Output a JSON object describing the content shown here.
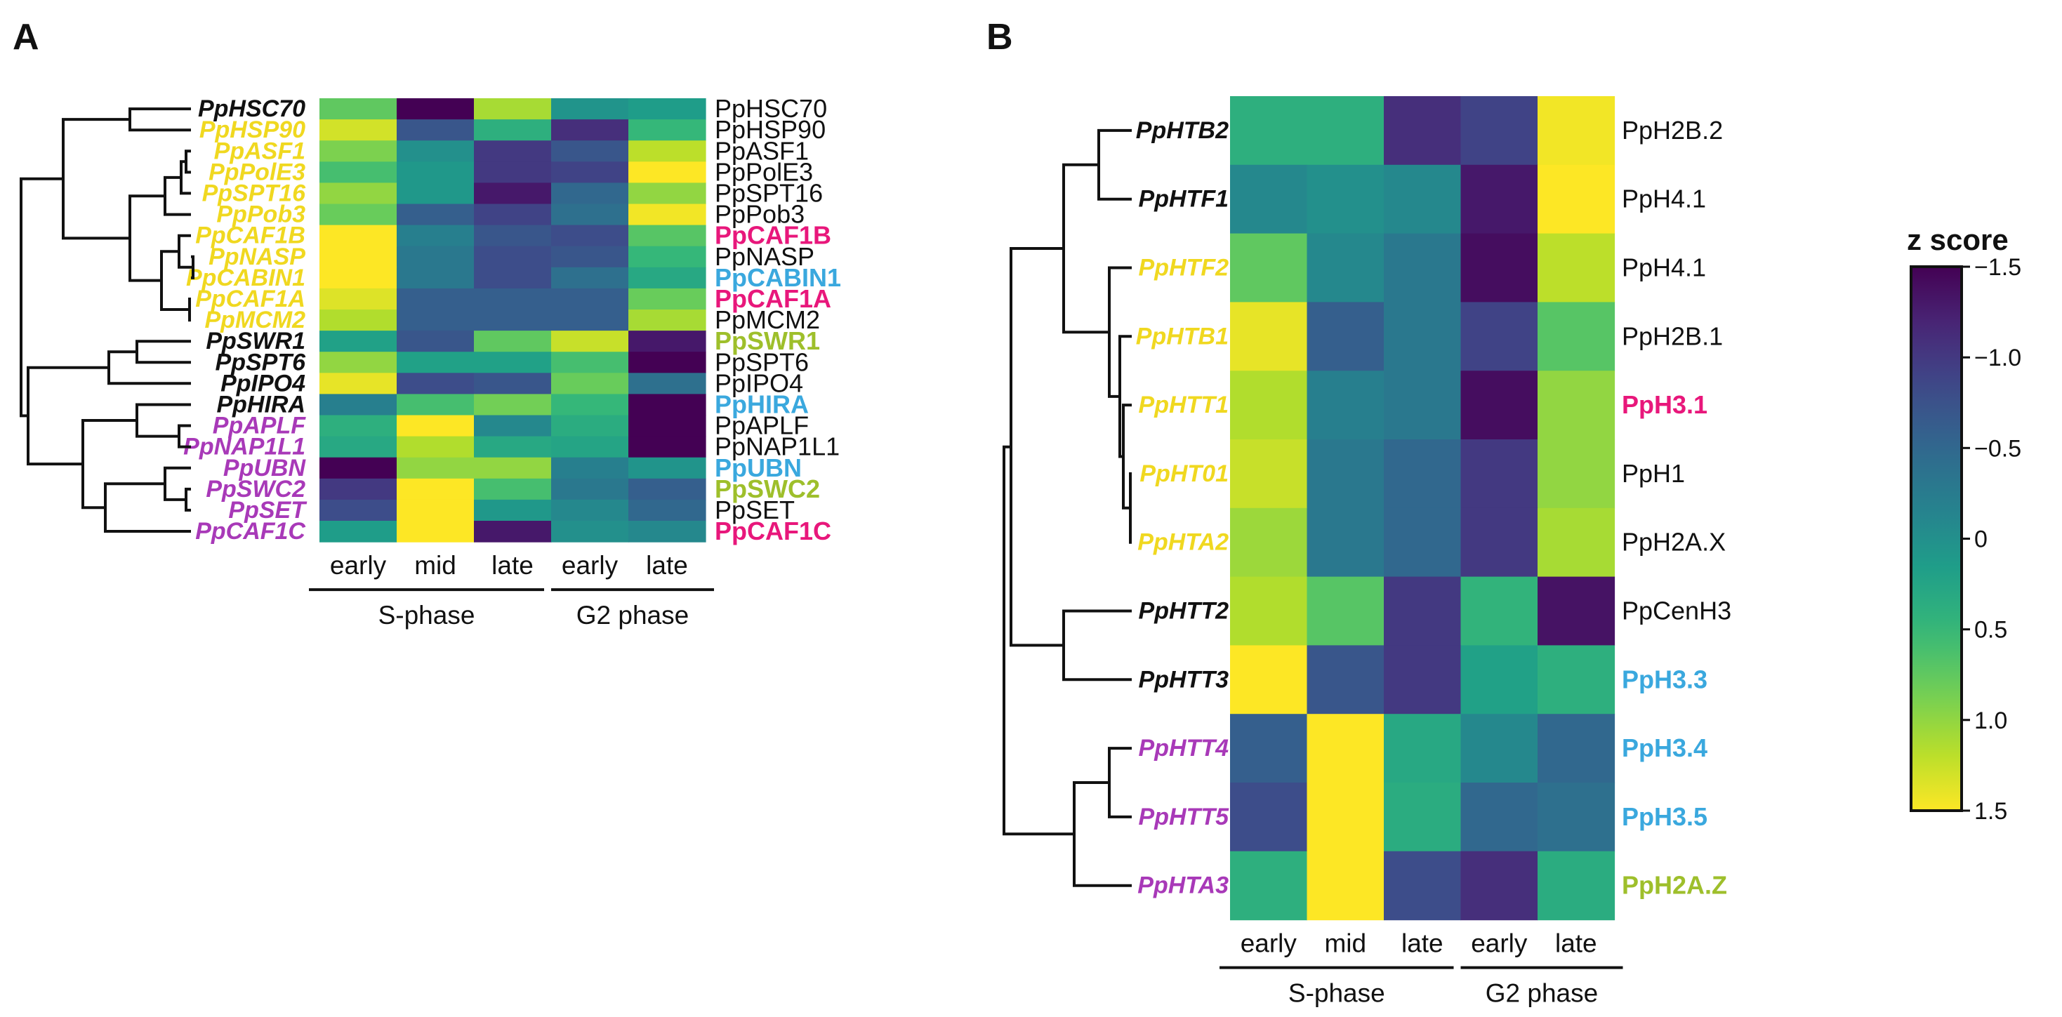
{
  "chart_data": [
    {
      "type": "heatmap",
      "panel": "A",
      "columns": [
        "early",
        "mid",
        "late",
        "early",
        "late"
      ],
      "column_groups": [
        {
          "label": "S-phase",
          "span": [
            0,
            2
          ]
        },
        {
          "label": "G2 phase",
          "span": [
            3,
            4
          ]
        }
      ],
      "rows": [
        {
          "leaf": "PpHSC70",
          "leaf_color": "#111111",
          "label": "PpHSC70",
          "label_color": "#111111",
          "bold": false,
          "values": [
            0.75,
            -1.5,
            1.1,
            0.05,
            0.15
          ]
        },
        {
          "leaf": "PpHSP90",
          "leaf_color": "#f0d820",
          "label": "PpHSP90",
          "label_color": "#111111",
          "bold": false,
          "values": [
            1.3,
            -0.7,
            0.4,
            -1.1,
            0.5
          ]
        },
        {
          "leaf": "PpASF1",
          "leaf_color": "#f0d820",
          "label": "PpASF1",
          "label_color": "#111111",
          "bold": false,
          "values": [
            0.9,
            0.0,
            -1.0,
            -0.7,
            1.2
          ]
        },
        {
          "leaf": "PpPolE3",
          "leaf_color": "#f0d820",
          "label": "PpPolE3",
          "label_color": "#111111",
          "bold": false,
          "values": [
            0.6,
            0.1,
            -1.0,
            -0.9,
            1.5
          ]
        },
        {
          "leaf": "PpSPT16",
          "leaf_color": "#f0d820",
          "label": "PpSPT16",
          "label_color": "#111111",
          "bold": false,
          "values": [
            1.0,
            0.1,
            -1.3,
            -0.5,
            1.0
          ]
        },
        {
          "leaf": "PpPob3",
          "leaf_color": "#f0d820",
          "label": "PpPob3",
          "label_color": "#111111",
          "bold": false,
          "values": [
            0.8,
            -0.6,
            -0.9,
            -0.4,
            1.45
          ]
        },
        {
          "leaf": "PpCAF1B",
          "leaf_color": "#f0d820",
          "label": "PpCAF1B",
          "label_color": "#e8177b",
          "bold": true,
          "values": [
            1.5,
            -0.2,
            -0.7,
            -0.8,
            0.7
          ]
        },
        {
          "leaf": "PpNASP",
          "leaf_color": "#f0d820",
          "label": "PpNASP",
          "label_color": "#111111",
          "bold": false,
          "values": [
            1.5,
            -0.3,
            -0.8,
            -0.7,
            0.5
          ]
        },
        {
          "leaf": "PpCABIN1",
          "leaf_color": "#f0d820",
          "label": "PpCABIN1",
          "label_color": "#3aa8de",
          "bold": true,
          "values": [
            1.5,
            -0.3,
            -0.8,
            -0.4,
            0.3
          ]
        },
        {
          "leaf": "PpCAF1A",
          "leaf_color": "#f0d820",
          "label": "PpCAF1A",
          "label_color": "#e8177b",
          "bold": true,
          "values": [
            1.35,
            -0.6,
            -0.6,
            -0.6,
            0.8
          ]
        },
        {
          "leaf": "PpMCM2",
          "leaf_color": "#f0d820",
          "label": "PpMCM2",
          "label_color": "#111111",
          "bold": false,
          "values": [
            1.15,
            -0.6,
            -0.6,
            -0.6,
            1.1
          ]
        },
        {
          "leaf": "PpSWR1",
          "leaf_color": "#111111",
          "label": "PpSWR1",
          "label_color": "#9ebf2b",
          "bold": true,
          "values": [
            0.2,
            -0.7,
            0.75,
            1.25,
            -1.3
          ]
        },
        {
          "leaf": "PpSPT6",
          "leaf_color": "#111111",
          "label": "PpSPT6",
          "label_color": "#111111",
          "bold": false,
          "values": [
            1.0,
            0.2,
            0.2,
            0.6,
            -1.5
          ]
        },
        {
          "leaf": "PpIPO4",
          "leaf_color": "#111111",
          "label": "PpIPO4",
          "label_color": "#111111",
          "bold": false,
          "values": [
            1.4,
            -0.8,
            -0.7,
            0.8,
            -0.4
          ]
        },
        {
          "leaf": "PpHIRA",
          "leaf_color": "#111111",
          "label": "PpHIRA",
          "label_color": "#3aa8de",
          "bold": true,
          "values": [
            -0.2,
            0.6,
            0.85,
            0.5,
            -1.5
          ]
        },
        {
          "leaf": "PpAPLF",
          "leaf_color": "#a839b8",
          "label": "PpAPLF",
          "label_color": "#111111",
          "bold": false,
          "values": [
            0.4,
            1.5,
            -0.1,
            0.35,
            -1.5
          ]
        },
        {
          "leaf": "PpNAP1L1",
          "leaf_color": "#a839b8",
          "label": "PpNAP1L1",
          "label_color": "#111111",
          "bold": false,
          "values": [
            0.3,
            1.15,
            0.3,
            0.25,
            -1.5
          ]
        },
        {
          "leaf": "PpUBN",
          "leaf_color": "#a839b8",
          "label": "PpUBN",
          "label_color": "#3aa8de",
          "bold": true,
          "values": [
            -1.5,
            1.0,
            1.0,
            -0.2,
            0.05
          ]
        },
        {
          "leaf": "PpSWC2",
          "leaf_color": "#a839b8",
          "label": "PpSWC2",
          "label_color": "#9ebf2b",
          "bold": true,
          "values": [
            -1.0,
            1.5,
            0.6,
            -0.3,
            -0.6
          ]
        },
        {
          "leaf": "PpSET",
          "leaf_color": "#a839b8",
          "label": "PpSET",
          "label_color": "#111111",
          "bold": false,
          "values": [
            -0.8,
            1.5,
            0.1,
            -0.1,
            -0.5
          ]
        },
        {
          "leaf": "PpCAF1C",
          "leaf_color": "#a839b8",
          "label": "PpCAF1C",
          "label_color": "#e8177b",
          "bold": true,
          "values": [
            0.15,
            1.5,
            -1.3,
            0.0,
            -0.1
          ]
        }
      ]
    },
    {
      "type": "heatmap",
      "panel": "B",
      "columns": [
        "early",
        "mid",
        "late",
        "early",
        "late"
      ],
      "column_groups": [
        {
          "label": "S-phase",
          "span": [
            0,
            2
          ]
        },
        {
          "label": "G2 phase",
          "span": [
            3,
            4
          ]
        }
      ],
      "rows": [
        {
          "leaf": "PpHTB2",
          "leaf_color": "#111111",
          "label": "PpH2B.2",
          "label_color": "#111111",
          "bold": false,
          "values": [
            0.4,
            0.4,
            -1.1,
            -0.9,
            1.45
          ]
        },
        {
          "leaf": "PpHTF1",
          "leaf_color": "#111111",
          "label": "PpH4.1",
          "label_color": "#111111",
          "bold": false,
          "values": [
            -0.1,
            0.0,
            -0.1,
            -1.3,
            1.5
          ]
        },
        {
          "leaf": "PpHTF2",
          "leaf_color": "#f0d820",
          "label": "PpH4.1",
          "label_color": "#111111",
          "bold": false,
          "values": [
            0.75,
            -0.1,
            -0.3,
            -1.4,
            1.2
          ]
        },
        {
          "leaf": "PpHTB1",
          "leaf_color": "#f0d820",
          "label": "PpH2B.1",
          "label_color": "#111111",
          "bold": false,
          "values": [
            1.4,
            -0.6,
            -0.3,
            -0.9,
            0.7
          ]
        },
        {
          "leaf": "PpHTT1",
          "leaf_color": "#f0d820",
          "label": "PpH3.1",
          "label_color": "#e8177b",
          "bold": true,
          "values": [
            1.15,
            -0.2,
            -0.3,
            -1.4,
            1.0
          ]
        },
        {
          "leaf": "PpHT01",
          "leaf_color": "#f0d820",
          "label": "PpH1",
          "label_color": "#111111",
          "bold": false,
          "values": [
            1.25,
            -0.3,
            -0.5,
            -1.0,
            1.0
          ]
        },
        {
          "leaf": "PpHTA2",
          "leaf_color": "#f0d820",
          "label": "PpH2A.X",
          "label_color": "#111111",
          "bold": false,
          "values": [
            1.05,
            -0.3,
            -0.5,
            -1.0,
            1.1
          ]
        },
        {
          "leaf": "PpHTT2",
          "leaf_color": "#111111",
          "label": "PpCenH3",
          "label_color": "#111111",
          "bold": false,
          "values": [
            1.15,
            0.7,
            -1.0,
            0.45,
            -1.35
          ]
        },
        {
          "leaf": "PpHTT3",
          "leaf_color": "#111111",
          "label": "PpH3.3",
          "label_color": "#3aa8de",
          "bold": true,
          "values": [
            1.5,
            -0.7,
            -1.0,
            0.2,
            0.4
          ]
        },
        {
          "leaf": "PpHTT4",
          "leaf_color": "#a839b8",
          "label": "PpH3.4",
          "label_color": "#3aa8de",
          "bold": true,
          "values": [
            -0.6,
            1.5,
            0.3,
            -0.1,
            -0.5
          ]
        },
        {
          "leaf": "PpHTT5",
          "leaf_color": "#a839b8",
          "label": "PpH3.5",
          "label_color": "#3aa8de",
          "bold": true,
          "values": [
            -0.8,
            1.5,
            0.35,
            -0.5,
            -0.4
          ]
        },
        {
          "leaf": "PpHTA3",
          "leaf_color": "#a839b8",
          "label": "PpH2A.Z",
          "label_color": "#9ebf2b",
          "bold": true,
          "values": [
            0.4,
            1.5,
            -0.8,
            -1.1,
            0.35
          ]
        }
      ]
    }
  ],
  "panel_a_label": "A",
  "panel_b_label": "B",
  "colorbar": {
    "title": "z score",
    "ticks": [
      -1.5,
      -1.0,
      -0.5,
      0,
      0.5,
      1.0,
      1.5
    ],
    "tick_labels": [
      "−1.5",
      "−1.0",
      "−0.5",
      "0",
      "0.5",
      "1.0",
      "1.5"
    ],
    "range": [
      -1.5,
      1.5
    ],
    "colormap": "viridis",
    "low_color": "#440154",
    "high_color": "#fde725"
  }
}
